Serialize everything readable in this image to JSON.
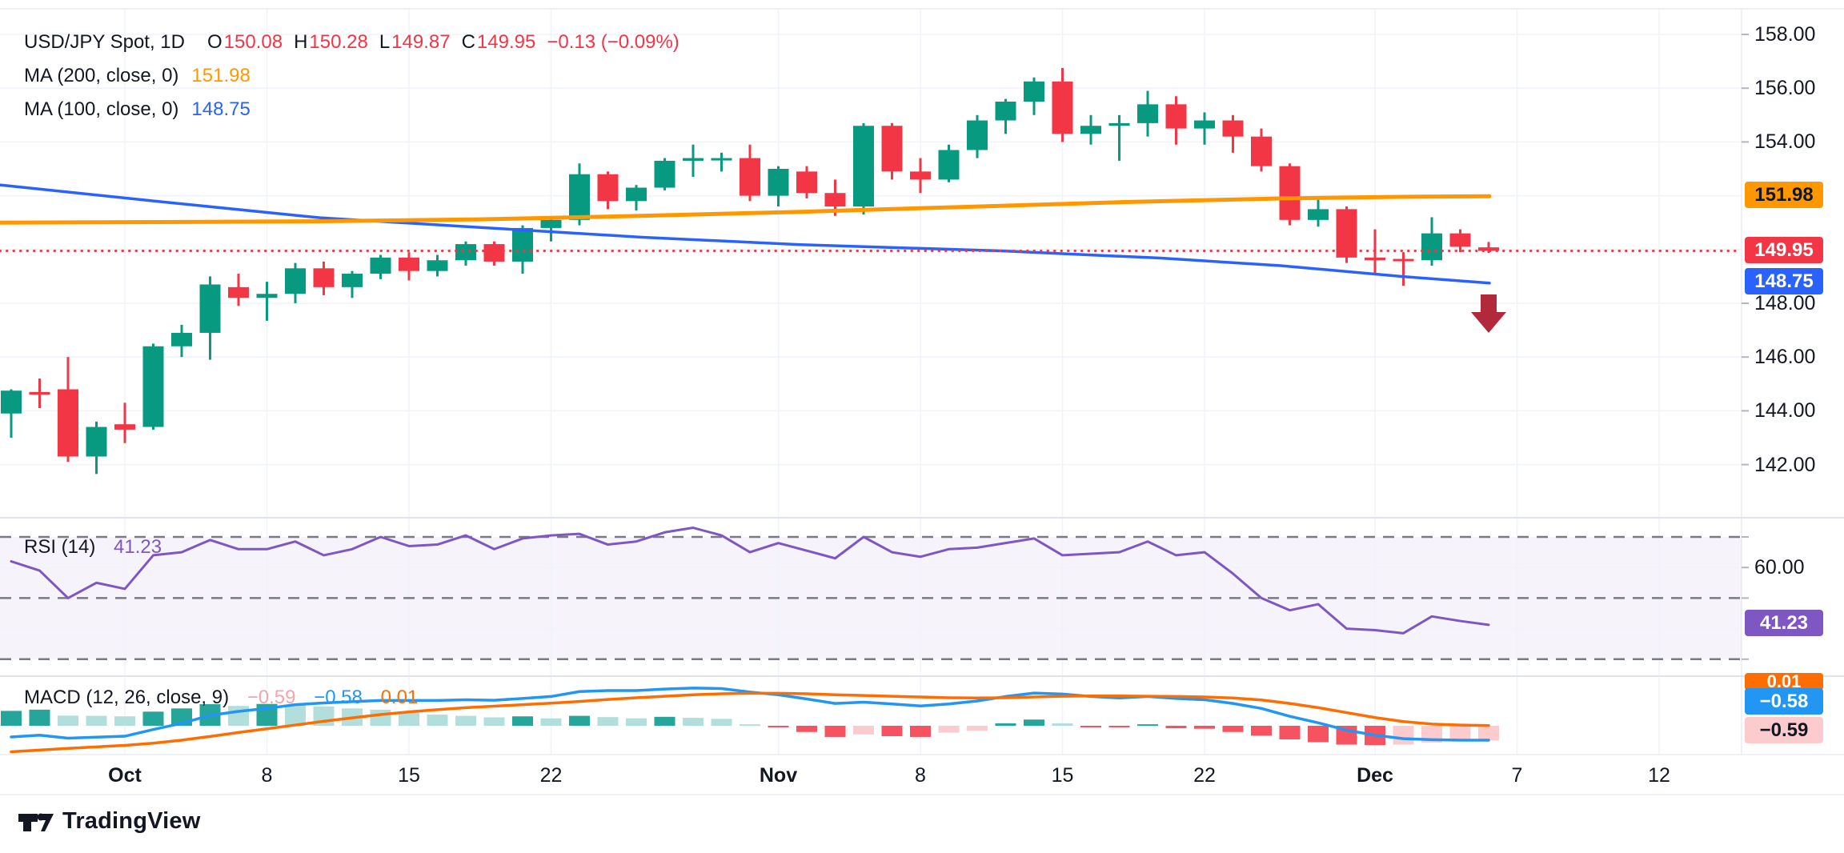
{
  "legend": {
    "symbol": {
      "title": "USD/JPY Spot, 1D",
      "o_label": "O",
      "o_value": "150.08",
      "h_label": "H",
      "h_value": "150.28",
      "l_label": "L",
      "l_value": "149.87",
      "c_label": "C",
      "c_value": "149.95",
      "change": "−0.13 (−0.09%)"
    },
    "ma200": {
      "label": "MA (200, close, 0)",
      "value": "151.98"
    },
    "ma100": {
      "label": "MA (100, close, 0)",
      "value": "148.75"
    },
    "rsi": {
      "label": "RSI (14)",
      "value": "41.23"
    },
    "macd": {
      "label": "MACD (12, 26, close, 9)",
      "hist_value": "−0.59",
      "macd_value": "−0.58",
      "signal_value": "0.01"
    }
  },
  "badges": {
    "ma200": "151.98",
    "close": "149.95",
    "ma100": "148.75",
    "rsi": "41.23",
    "macd_signal": "0.01",
    "macd_line": "−0.58",
    "macd_hist": "−0.59"
  },
  "logo": {
    "text": "TradingView"
  },
  "colors": {
    "up": "#089981",
    "down": "#F23645",
    "ma200": "#FF9800",
    "ma100": "#2962FF",
    "close_line": "#F23645",
    "rsi_line": "#7E57C2",
    "rsi_band": "#7E57C2",
    "macd_line": "#2196F3",
    "signal_line": "#FF6D00",
    "hist_up_grow": "#26A69A",
    "hist_up_fall": "#B2DFDB",
    "hist_dn_fall": "#F7525F",
    "hist_dn_grow": "#FCCBCD",
    "grid": "#F0F3FA",
    "separator": "#E0E3EB",
    "dashed_level": "#787B86",
    "arrow": "#B2293B",
    "badge_pink_text": "#131722"
  },
  "axes": {
    "price_labels": [
      {
        "value": 158,
        "label": "158.00"
      },
      {
        "value": 156,
        "label": "156.00"
      },
      {
        "value": 154,
        "label": "154.00"
      },
      {
        "value": 148,
        "label": "148.00"
      },
      {
        "value": 146,
        "label": "146.00"
      },
      {
        "value": 144,
        "label": "144.00"
      },
      {
        "value": 142,
        "label": "142.00"
      }
    ],
    "price_gridlines": [
      158,
      156,
      154,
      152,
      150,
      148,
      146,
      144,
      142
    ],
    "rsi_labels": [
      {
        "value": 60,
        "label": "60.00"
      }
    ],
    "rsi_gridlines": [
      60,
      40
    ],
    "rsi_dashed_levels": [
      70,
      50,
      30
    ],
    "time_labels": [
      {
        "label": "Oct",
        "index": 4,
        "major": true
      },
      {
        "label": "8",
        "index": 9,
        "major": false
      },
      {
        "label": "15",
        "index": 14,
        "major": false
      },
      {
        "label": "22",
        "index": 19,
        "major": false
      },
      {
        "label": "Nov",
        "index": 27,
        "major": true
      },
      {
        "label": "8",
        "index": 32,
        "major": false
      },
      {
        "label": "15",
        "index": 37,
        "major": false
      },
      {
        "label": "22",
        "index": 42,
        "major": false
      },
      {
        "label": "Dec",
        "index": 48,
        "major": true
      },
      {
        "label": "7",
        "index": 53,
        "major": false
      },
      {
        "label": "12",
        "index": 58,
        "major": false
      }
    ]
  },
  "chart_data": {
    "type": "candlestick",
    "title": "USD/JPY Spot",
    "timeframe": "1D",
    "ohlc_display": {
      "open": 150.08,
      "high": 150.28,
      "low": 149.87,
      "close": 149.95,
      "change": -0.13,
      "change_pct": -0.09
    },
    "price_axis_range": [
      141.0,
      158.9
    ],
    "candles": [
      [
        143.9,
        144.8,
        143.0,
        144.75
      ],
      [
        144.7,
        145.2,
        144.1,
        144.6
      ],
      [
        144.8,
        146.0,
        142.1,
        142.3
      ],
      [
        142.3,
        143.6,
        141.65,
        143.4
      ],
      [
        143.5,
        144.3,
        142.8,
        143.3
      ],
      [
        143.4,
        146.5,
        143.3,
        146.4
      ],
      [
        146.4,
        147.2,
        146.0,
        146.9
      ],
      [
        146.9,
        149.0,
        145.9,
        148.7
      ],
      [
        148.6,
        149.1,
        147.9,
        148.2
      ],
      [
        148.2,
        148.8,
        147.35,
        148.35
      ],
      [
        148.35,
        149.5,
        148.0,
        149.3
      ],
      [
        149.3,
        149.55,
        148.3,
        148.6
      ],
      [
        148.6,
        149.2,
        148.2,
        149.1
      ],
      [
        149.1,
        149.8,
        148.9,
        149.7
      ],
      [
        149.7,
        149.9,
        148.85,
        149.2
      ],
      [
        149.2,
        149.8,
        149.0,
        149.6
      ],
      [
        149.6,
        150.3,
        149.4,
        150.2
      ],
      [
        150.2,
        150.3,
        149.4,
        149.55
      ],
      [
        149.55,
        150.9,
        149.1,
        150.8
      ],
      [
        150.8,
        151.2,
        150.3,
        151.1
      ],
      [
        151.1,
        153.2,
        150.9,
        152.8
      ],
      [
        152.8,
        152.9,
        151.5,
        151.8
      ],
      [
        151.8,
        152.4,
        151.45,
        152.3
      ],
      [
        152.3,
        153.4,
        152.2,
        153.3
      ],
      [
        153.3,
        153.9,
        152.7,
        153.4
      ],
      [
        153.4,
        153.6,
        152.9,
        153.4
      ],
      [
        153.4,
        153.9,
        151.8,
        152.0
      ],
      [
        152.0,
        153.1,
        151.6,
        153.0
      ],
      [
        152.9,
        153.1,
        151.9,
        152.1
      ],
      [
        152.1,
        152.6,
        151.25,
        151.6
      ],
      [
        151.6,
        154.7,
        151.3,
        154.6
      ],
      [
        154.6,
        154.7,
        152.6,
        152.9
      ],
      [
        152.9,
        153.4,
        152.1,
        152.6
      ],
      [
        152.6,
        153.9,
        152.5,
        153.7
      ],
      [
        153.7,
        155.0,
        153.4,
        154.8
      ],
      [
        154.8,
        155.6,
        154.3,
        155.5
      ],
      [
        155.5,
        156.4,
        155.0,
        156.25
      ],
      [
        156.25,
        156.75,
        154.0,
        154.3
      ],
      [
        154.3,
        155.0,
        153.9,
        154.6
      ],
      [
        154.6,
        155.0,
        153.3,
        154.7
      ],
      [
        154.7,
        155.9,
        154.2,
        155.4
      ],
      [
        155.4,
        155.7,
        153.9,
        154.5
      ],
      [
        154.5,
        155.1,
        153.9,
        154.8
      ],
      [
        154.8,
        155.0,
        153.6,
        154.2
      ],
      [
        154.2,
        154.5,
        152.9,
        153.1
      ],
      [
        153.1,
        153.2,
        150.9,
        151.1
      ],
      [
        151.1,
        151.95,
        150.85,
        151.5
      ],
      [
        151.5,
        151.6,
        149.5,
        149.7
      ],
      [
        149.7,
        150.75,
        149.1,
        149.6
      ],
      [
        149.65,
        149.9,
        148.65,
        149.6
      ],
      [
        149.6,
        151.2,
        149.4,
        150.6
      ],
      [
        150.6,
        150.75,
        149.9,
        150.1
      ],
      [
        150.08,
        150.28,
        149.87,
        149.95
      ]
    ],
    "ma200": {
      "period": 200,
      "current": 151.98,
      "points": [
        [
          0,
          151.0
        ],
        [
          200,
          151.02
        ],
        [
          400,
          151.05
        ],
        [
          600,
          151.12
        ],
        [
          800,
          151.25
        ],
        [
          1000,
          151.4
        ],
        [
          1200,
          151.58
        ],
        [
          1400,
          151.76
        ],
        [
          1600,
          151.9
        ],
        [
          1750,
          151.96
        ],
        [
          1861,
          151.98
        ]
      ]
    },
    "ma100": {
      "period": 100,
      "current": 148.75,
      "points": [
        [
          0,
          152.4
        ],
        [
          200,
          151.78
        ],
        [
          400,
          151.18
        ],
        [
          600,
          150.82
        ],
        [
          800,
          150.46
        ],
        [
          1000,
          150.18
        ],
        [
          1250,
          149.95
        ],
        [
          1450,
          149.68
        ],
        [
          1600,
          149.4
        ],
        [
          1750,
          149.0
        ],
        [
          1861,
          148.75
        ]
      ]
    },
    "close_level": 149.95,
    "rsi": {
      "period": 14,
      "current": 41.23,
      "levels": [
        70,
        50,
        30
      ],
      "series": [
        62,
        59,
        50,
        55,
        53,
        64,
        65,
        69,
        66,
        66,
        68.5,
        64,
        66,
        70,
        67,
        67.5,
        70.5,
        66,
        69.5,
        70.5,
        71,
        67.5,
        68.5,
        71.5,
        73,
        70.5,
        65,
        68,
        65.5,
        63,
        70,
        65,
        63.5,
        66,
        66.5,
        68,
        69.5,
        64,
        64.5,
        65,
        68.5,
        64,
        65,
        58,
        50,
        46,
        48,
        40,
        39.5,
        38.5,
        44,
        42.5,
        41.23
      ]
    },
    "macd": {
      "params": "12, 26, close, 9",
      "current": {
        "hist": -0.59,
        "macd": -0.58,
        "signal": 0.01
      },
      "macd_series": [
        -0.45,
        -0.38,
        -0.5,
        -0.46,
        -0.42,
        -0.15,
        0.1,
        0.42,
        0.58,
        0.7,
        0.85,
        0.92,
        0.97,
        1.02,
        1.02,
        1.02,
        1.05,
        1.03,
        1.1,
        1.18,
        1.38,
        1.42,
        1.42,
        1.48,
        1.52,
        1.5,
        1.36,
        1.25,
        1.08,
        0.9,
        0.95,
        0.88,
        0.8,
        0.88,
        1.0,
        1.18,
        1.32,
        1.28,
        1.18,
        1.12,
        1.18,
        1.1,
        1.05,
        0.9,
        0.7,
        0.38,
        0.12,
        -0.18,
        -0.38,
        -0.52,
        -0.56,
        -0.58,
        -0.58
      ],
      "signal_series": [
        -1.05,
        -0.98,
        -0.91,
        -0.85,
        -0.79,
        -0.7,
        -0.58,
        -0.43,
        -0.27,
        -0.12,
        0.03,
        0.18,
        0.32,
        0.45,
        0.56,
        0.65,
        0.73,
        0.79,
        0.85,
        0.91,
        0.98,
        1.06,
        1.13,
        1.19,
        1.25,
        1.29,
        1.31,
        1.31,
        1.29,
        1.25,
        1.22,
        1.19,
        1.16,
        1.13,
        1.12,
        1.13,
        1.16,
        1.19,
        1.2,
        1.2,
        1.19,
        1.18,
        1.16,
        1.12,
        1.04,
        0.9,
        0.73,
        0.53,
        0.33,
        0.17,
        0.07,
        0.03,
        0.01
      ],
      "hist_series": [
        0.6,
        0.65,
        0.41,
        0.4,
        0.38,
        0.57,
        0.7,
        0.87,
        0.8,
        0.88,
        0.85,
        0.78,
        0.7,
        0.65,
        0.53,
        0.45,
        0.4,
        0.34,
        0.38,
        0.3,
        0.4,
        0.35,
        0.3,
        0.36,
        0.32,
        0.28,
        0.06,
        -0.05,
        -0.25,
        -0.45,
        -0.35,
        -0.42,
        -0.45,
        -0.28,
        -0.2,
        0.1,
        0.25,
        0.1,
        -0.02,
        -0.05,
        0.06,
        -0.1,
        -0.12,
        -0.25,
        -0.4,
        -0.55,
        -0.66,
        -0.76,
        -0.78,
        -0.76,
        -0.68,
        -0.63,
        -0.59
      ]
    },
    "annotations": [
      {
        "type": "arrow-down",
        "candle_index": 52,
        "color": "#B2293B"
      }
    ]
  }
}
